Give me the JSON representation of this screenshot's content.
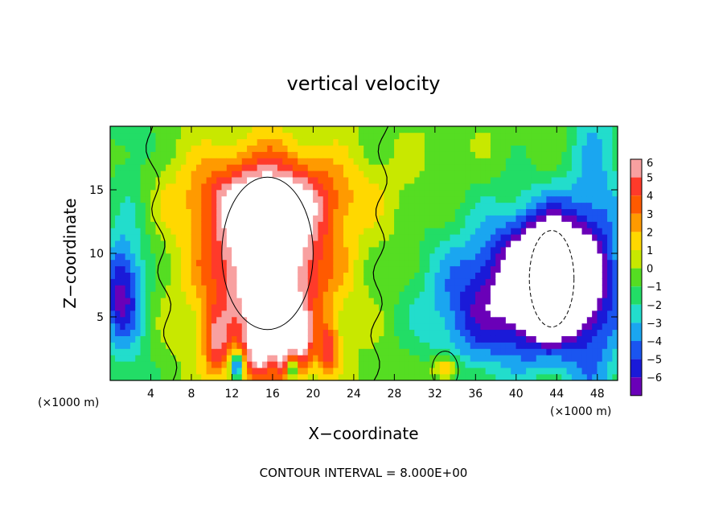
{
  "chart_data": {
    "type": "heatmap",
    "title": "vertical velocity",
    "xlabel": "X−coordinate",
    "ylabel": "Z−coordinate",
    "x_unit_label": "(×1000 m)",
    "y_unit_label": "(×1000 m)",
    "xlim": [
      0,
      50
    ],
    "ylim": [
      0,
      20
    ],
    "x_ticks": [
      4,
      8,
      12,
      16,
      20,
      24,
      28,
      32,
      36,
      40,
      44,
      48
    ],
    "x_tick_labels": [
      "4",
      "8",
      "12",
      "16",
      "20",
      "24",
      "28",
      "32",
      "36",
      "40",
      "44",
      "48"
    ],
    "y_ticks": [
      5,
      10,
      15
    ],
    "y_tick_labels": [
      "5",
      "10",
      "15"
    ],
    "colorbar": {
      "levels": [
        6,
        5,
        4,
        3,
        2,
        1,
        0,
        -1,
        -2,
        -3,
        -4,
        -5,
        -6
      ],
      "labels": [
        "6",
        "5",
        "4",
        "3",
        "2",
        "1",
        "0",
        "−1",
        "−2",
        "−3",
        "−4",
        "−5",
        "−6"
      ],
      "colors": [
        "#f8a0a0",
        "#ff3a2a",
        "#ff5a00",
        "#ff9a00",
        "#ffd800",
        "#c8e800",
        "#55dd22",
        "#22dd66",
        "#22ddcc",
        "#1aa6f0",
        "#1a55f0",
        "#1a1ad8",
        "#6a00b8"
      ]
    },
    "contour_interval_text": "CONTOUR INTERVAL = 8.000E+00",
    "field_features": [
      {
        "kind": "updraft core",
        "x": 15.5,
        "z": 9.5,
        "rx": 6.0,
        "rz": 7.0,
        "w": 9
      },
      {
        "kind": "updraft arc",
        "x": 16.0,
        "z": 14.5,
        "rx": 9.0,
        "rz": 3.0,
        "w": 3.5
      },
      {
        "kind": "updraft plume",
        "x": 10.5,
        "z": 3.0,
        "rx": 1.2,
        "rz": 2.5,
        "w": 4
      },
      {
        "kind": "updraft plume",
        "x": 14.5,
        "z": 2.5,
        "rx": 1.2,
        "rz": 2.5,
        "w": 5
      },
      {
        "kind": "updraft plume",
        "x": 17.0,
        "z": 3.0,
        "rx": 1.2,
        "rz": 2.5,
        "w": 5
      },
      {
        "kind": "updraft plume",
        "x": 19.0,
        "z": 3.0,
        "rx": 1.0,
        "rz": 2.5,
        "w": 4
      },
      {
        "kind": "updraft plume",
        "x": 21.5,
        "z": 2.5,
        "rx": 1.0,
        "rz": 2.0,
        "w": 4
      },
      {
        "kind": "updraft plume",
        "x": 33.0,
        "z": 1.0,
        "rx": 1.3,
        "rz": 1.0,
        "w": 4
      },
      {
        "kind": "downdraft",
        "x": 12.5,
        "z": 1.2,
        "rx": 0.6,
        "rz": 1.0,
        "w": -6
      },
      {
        "kind": "downdraft",
        "x": 18.0,
        "z": 1.0,
        "rx": 0.5,
        "rz": 0.8,
        "w": -5
      },
      {
        "kind": "downdraft region",
        "x": 42.0,
        "z": 8.0,
        "rx": 8.0,
        "rz": 6.0,
        "w": -5.5
      },
      {
        "kind": "downdraft core",
        "x": 43.5,
        "z": 8.0,
        "rx": 3.5,
        "rz": 4.5,
        "w": -10
      },
      {
        "kind": "downdraft region",
        "x": 1.0,
        "z": 7.0,
        "rx": 2.0,
        "rz": 4.0,
        "w": -5
      },
      {
        "kind": "downdraft region",
        "x": 36.0,
        "z": 5.0,
        "rx": 6.0,
        "rz": 5.0,
        "w": -3
      }
    ]
  },
  "title": "vertical velocity",
  "xlabel": "X−coordinate",
  "ylabel": "Z−coordinate",
  "footer": "CONTOUR INTERVAL = 8.000E+00"
}
